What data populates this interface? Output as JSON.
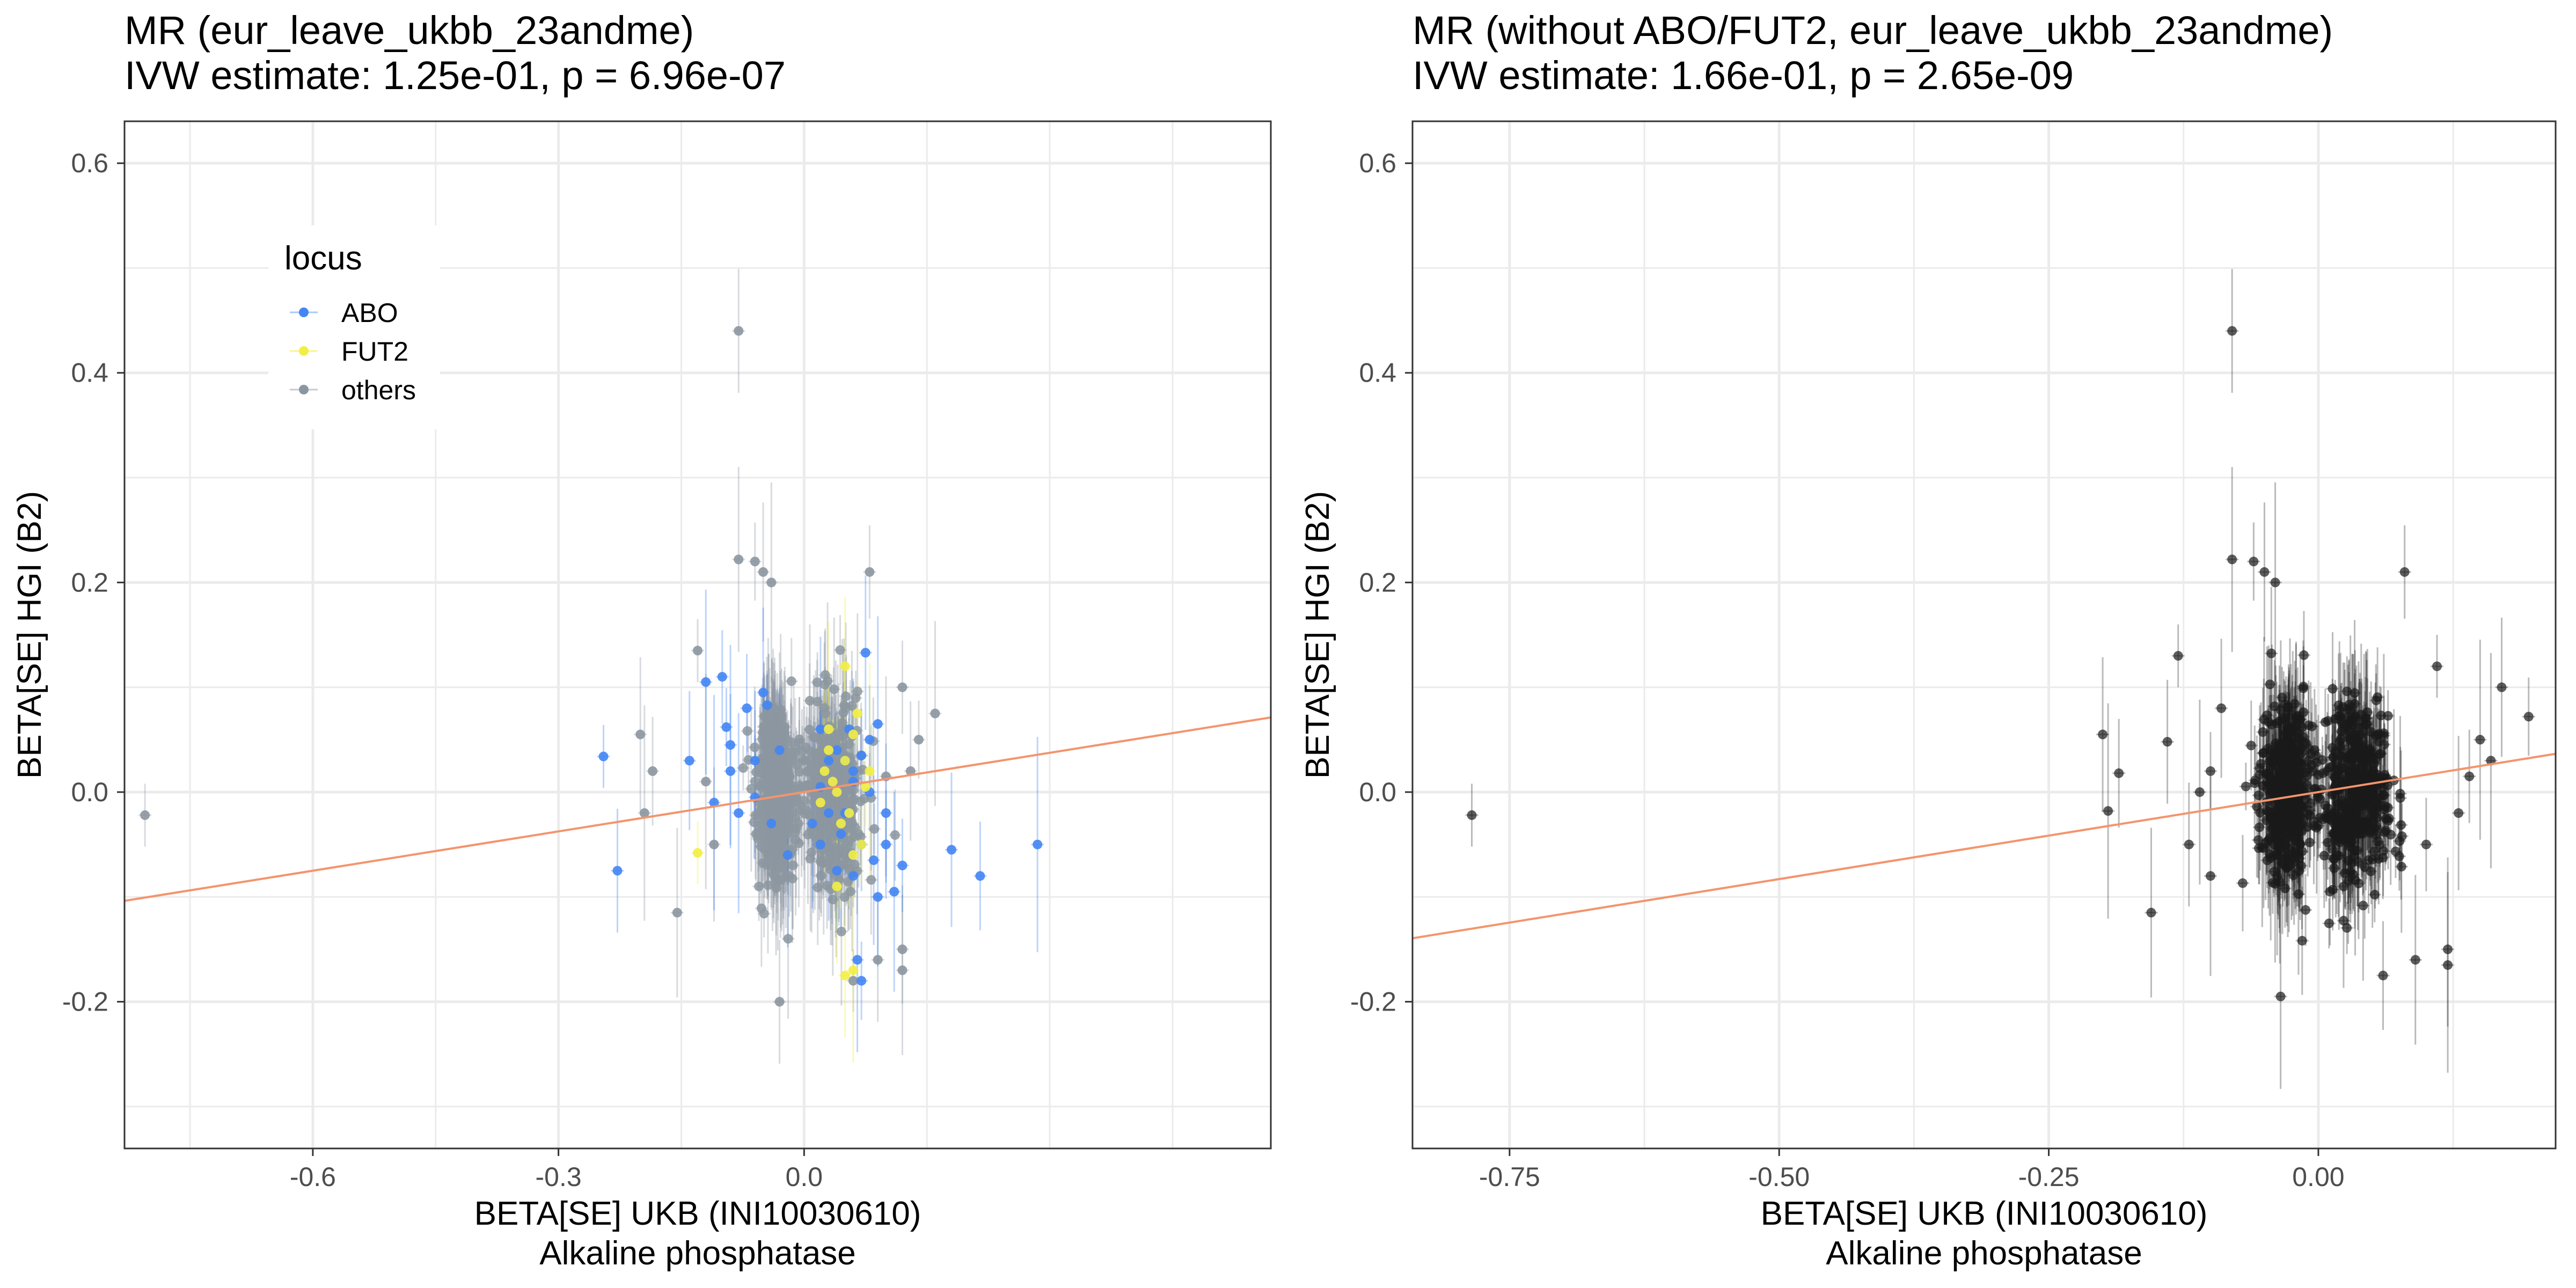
{
  "chart_data": [
    {
      "type": "scatter",
      "title": "MR (eur_leave_ukbb_23andme)",
      "subtitle": "IVW estimate: 1.25e-01, p = 6.96e-07",
      "xlabel": "BETA[SE] UKB (INI10030610)",
      "xlabel2": "Alkaline phosphatase",
      "ylabel": "BETA[SE] HGI (B2)",
      "xlim": [
        -0.83,
        0.57
      ],
      "ylim": [
        -0.34,
        0.64
      ],
      "x_ticks": [
        -0.6,
        -0.3,
        0.0
      ],
      "x_tick_labels": [
        "-0.6",
        "-0.3",
        "0.0"
      ],
      "y_ticks": [
        -0.2,
        0.0,
        0.2,
        0.4,
        0.6
      ],
      "y_tick_labels": [
        "-0.2",
        "0.0",
        "0.2",
        "0.4",
        "0.6"
      ],
      "grid": true,
      "legend": {
        "title": "locus",
        "position": "top-left",
        "entries": [
          {
            "label": "ABO",
            "color": "#4285f4"
          },
          {
            "label": "FUT2",
            "color": "#f2ee45"
          },
          {
            "label": "others",
            "color": "#8c96a0"
          }
        ]
      },
      "ivw_line": {
        "slope": 0.125,
        "intercept": 0.0,
        "color": "#f4946c"
      },
      "series": [
        {
          "name": "ABO",
          "color": "#4285f4",
          "points": [
            [
              -0.245,
              0.034
            ],
            [
              -0.228,
              -0.075
            ],
            [
              -0.12,
              0.105
            ],
            [
              -0.095,
              0.062
            ],
            [
              -0.14,
              0.03
            ],
            [
              -0.09,
              0.045
            ],
            [
              -0.1,
              0.11
            ],
            [
              -0.09,
              0.02
            ],
            [
              -0.11,
              -0.01
            ],
            [
              -0.07,
              0.08
            ],
            [
              -0.05,
              0.095
            ],
            [
              -0.045,
              0.083
            ],
            [
              -0.06,
              -0.005
            ],
            [
              0.02,
              0.06
            ],
            [
              0.04,
              0.04
            ],
            [
              0.05,
              0.03
            ],
            [
              0.06,
              0.01
            ],
            [
              0.07,
              0.035
            ],
            [
              0.075,
              0.133
            ],
            [
              0.09,
              0.065
            ],
            [
              0.1,
              -0.05
            ],
            [
              0.085,
              -0.065
            ],
            [
              0.06,
              -0.08
            ],
            [
              0.04,
              -0.075
            ],
            [
              0.065,
              -0.16
            ],
            [
              0.07,
              -0.18
            ],
            [
              0.09,
              -0.1
            ],
            [
              0.11,
              -0.095
            ],
            [
              0.12,
              -0.07
            ],
            [
              0.18,
              -0.055
            ],
            [
              0.285,
              -0.05
            ],
            [
              0.215,
              -0.08
            ],
            [
              0.03,
              0.03
            ],
            [
              0.02,
              -0.05
            ],
            [
              0.05,
              -0.02
            ],
            [
              0.06,
              0.02
            ],
            [
              0.08,
              0.0
            ],
            [
              0.1,
              -0.02
            ],
            [
              0.045,
              -0.04
            ],
            [
              0.07,
              -0.05
            ],
            [
              0.02,
              0.005
            ],
            [
              0.03,
              -0.02
            ],
            [
              0.08,
              0.05
            ],
            [
              0.01,
              -0.03
            ],
            [
              0.055,
              0.06
            ],
            [
              -0.03,
              0.04
            ],
            [
              -0.02,
              -0.06
            ],
            [
              -0.04,
              -0.03
            ],
            [
              -0.06,
              0.03
            ],
            [
              -0.08,
              -0.02
            ]
          ]
        },
        {
          "name": "FUT2",
          "color": "#f2ee45",
          "points": [
            [
              -0.13,
              -0.058
            ],
            [
              0.05,
              -0.175
            ],
            [
              0.06,
              -0.17
            ],
            [
              0.07,
              -0.05
            ],
            [
              0.03,
              0.04
            ],
            [
              0.05,
              0.03
            ],
            [
              0.06,
              0.055
            ],
            [
              0.04,
              0.0
            ],
            [
              0.08,
              0.02
            ],
            [
              0.02,
              -0.01
            ],
            [
              0.045,
              -0.03
            ],
            [
              0.065,
              0.075
            ],
            [
              0.035,
              0.01
            ],
            [
              0.055,
              -0.02
            ],
            [
              0.075,
              0.005
            ],
            [
              0.05,
              0.12
            ],
            [
              0.025,
              0.02
            ],
            [
              0.06,
              -0.06
            ],
            [
              0.04,
              -0.09
            ],
            [
              0.03,
              0.06
            ]
          ]
        },
        {
          "name": "others",
          "color": "#8c96a0",
          "points": [
            [
              -0.805,
              -0.022
            ],
            [
              -0.08,
              0.44
            ],
            [
              -0.08,
              0.222
            ],
            [
              -0.06,
              0.22
            ],
            [
              -0.05,
              0.21
            ],
            [
              -0.04,
              0.2
            ],
            [
              0.08,
              0.21
            ],
            [
              -0.2,
              0.055
            ],
            [
              -0.195,
              -0.02
            ],
            [
              -0.185,
              0.02
            ],
            [
              -0.155,
              -0.115
            ],
            [
              -0.13,
              0.135
            ],
            [
              -0.03,
              -0.2
            ],
            [
              0.16,
              0.075
            ],
            [
              0.14,
              0.05
            ],
            [
              0.13,
              0.02
            ],
            [
              0.1,
              0.015
            ],
            [
              0.12,
              0.1
            ],
            [
              -0.11,
              -0.05
            ],
            [
              -0.12,
              0.01
            ],
            [
              0.12,
              -0.15
            ],
            [
              0.12,
              -0.17
            ],
            [
              0.06,
              -0.18
            ],
            [
              0.09,
              -0.16
            ]
          ]
        }
      ]
    },
    {
      "type": "scatter",
      "title": "MR (without ABO/FUT2, eur_leave_ukbb_23andme)",
      "subtitle": "IVW estimate: 1.66e-01, p = 2.65e-09",
      "xlabel": "BETA[SE] UKB (INI10030610)",
      "xlabel2": "Alkaline phosphatase",
      "ylabel": "BETA[SE] HGI (B2)",
      "xlim": [
        -0.84,
        0.22
      ],
      "ylim": [
        -0.34,
        0.64
      ],
      "x_ticks": [
        -0.75,
        -0.5,
        -0.25,
        0.0
      ],
      "x_tick_labels": [
        "-0.75",
        "-0.50",
        "-0.25",
        "0.00"
      ],
      "y_ticks": [
        -0.2,
        0.0,
        0.2,
        0.4,
        0.6
      ],
      "y_tick_labels": [
        "-0.2",
        "0.0",
        "0.2",
        "0.4",
        "0.6"
      ],
      "grid": true,
      "ivw_line": {
        "slope": 0.166,
        "intercept": 0.0,
        "color": "#f4946c"
      },
      "series": [
        {
          "color": "#1a1a1a",
          "points": [
            [
              -0.785,
              -0.022
            ],
            [
              -0.08,
              0.44
            ],
            [
              -0.08,
              0.222
            ],
            [
              -0.06,
              0.22
            ],
            [
              -0.05,
              0.21
            ],
            [
              -0.04,
              0.2
            ],
            [
              0.08,
              0.21
            ],
            [
              -0.2,
              0.055
            ],
            [
              -0.195,
              -0.018
            ],
            [
              -0.185,
              0.018
            ],
            [
              -0.155,
              -0.115
            ],
            [
              -0.13,
              0.13
            ],
            [
              -0.14,
              0.048
            ],
            [
              -0.035,
              -0.195
            ],
            [
              0.195,
              0.072
            ],
            [
              0.17,
              0.1
            ],
            [
              0.15,
              0.05
            ],
            [
              0.14,
              0.015
            ],
            [
              0.12,
              -0.15
            ],
            [
              0.12,
              -0.165
            ],
            [
              0.06,
              -0.175
            ],
            [
              0.09,
              -0.16
            ],
            [
              0.11,
              0.12
            ],
            [
              -0.12,
              -0.05
            ],
            [
              -0.11,
              0.0
            ],
            [
              -0.1,
              0.02
            ],
            [
              -0.09,
              0.08
            ],
            [
              -0.1,
              -0.08
            ],
            [
              0.1,
              -0.05
            ],
            [
              0.13,
              -0.02
            ],
            [
              0.16,
              0.03
            ]
          ]
        }
      ]
    }
  ]
}
